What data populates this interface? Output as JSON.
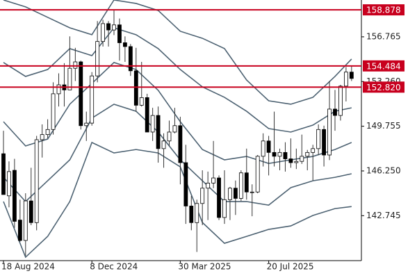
{
  "chart_data": {
    "type": "candlestick",
    "open": [
      147.6,
      144.3,
      146.3,
      142.4,
      140.8,
      143.9,
      142.2,
      148.7,
      149.1,
      149.5,
      152.3,
      153.0,
      152.6,
      154.3,
      154.8,
      149.8,
      150.0,
      153.7,
      156.4,
      157.8,
      157.3,
      157.7,
      156.3,
      156.0,
      154.1,
      151.4,
      152.0,
      149.3,
      150.6,
      148.0,
      148.6,
      149.3,
      149.8,
      146.9,
      143.5,
      142.2,
      143.7,
      144.9,
      145.3,
      145.7,
      142.6,
      144.0,
      144.9,
      144.1,
      146.1,
      144.6,
      144.6,
      147.4,
      148.6,
      147.7,
      147.4,
      147.7,
      147.2,
      146.9,
      147.0,
      147.4,
      147.7,
      148.0,
      149.5,
      147.5,
      151.1,
      150.6,
      152.9,
      154.0
    ],
    "high": [
      149.4,
      147.0,
      147.2,
      144.0,
      144.5,
      146.5,
      149.0,
      149.9,
      150.3,
      153.2,
      153.9,
      154.7,
      156.8,
      155.9,
      154.9,
      150.9,
      154.0,
      158.0,
      158.1,
      158.0,
      158.9,
      158.2,
      156.8,
      156.2,
      155.9,
      154.8,
      152.3,
      151.2,
      151.3,
      149.2,
      150.2,
      151.2,
      150.5,
      148.3,
      144.3,
      144.0,
      146.3,
      146.2,
      148.6,
      145.9,
      146.3,
      145.0,
      145.5,
      146.3,
      148.0,
      145.2,
      147.5,
      149.2,
      149.0,
      150.9,
      148.0,
      148.5,
      148.8,
      148.0,
      149.1,
      147.9,
      148.3,
      149.9,
      149.8,
      153.3,
      152.6,
      153.0,
      154.4,
      154.5
    ],
    "low": [
      144.4,
      143.4,
      141.8,
      140.7,
      139.6,
      142.0,
      141.6,
      147.3,
      148.8,
      149.1,
      151.3,
      151.3,
      152.6,
      153.3,
      149.5,
      148.6,
      149.8,
      153.2,
      156.0,
      156.0,
      156.9,
      154.9,
      154.8,
      153.7,
      150.9,
      151.3,
      149.3,
      148.6,
      146.9,
      146.5,
      148.2,
      149.2,
      145.2,
      142.1,
      141.6,
      139.9,
      142.0,
      142.4,
      144.9,
      142.4,
      142.1,
      142.4,
      142.8,
      143.9,
      144.0,
      142.7,
      144.5,
      146.6,
      145.9,
      146.6,
      146.3,
      146.2,
      146.5,
      146.4,
      146.8,
      146.3,
      145.5,
      147.5,
      146.6,
      147.1,
      149.4,
      150.2,
      151.7,
      153.3
    ],
    "close": [
      144.4,
      146.2,
      142.3,
      140.8,
      143.9,
      142.2,
      148.7,
      149.1,
      149.5,
      152.3,
      153.0,
      152.6,
      154.3,
      154.8,
      149.8,
      150.0,
      153.7,
      156.4,
      157.8,
      157.3,
      157.7,
      156.3,
      156.0,
      154.1,
      151.4,
      152.0,
      149.3,
      150.6,
      148.0,
      148.6,
      149.3,
      149.8,
      146.9,
      143.5,
      142.2,
      143.7,
      144.9,
      145.3,
      145.7,
      142.6,
      144.0,
      144.9,
      144.1,
      146.1,
      144.6,
      144.6,
      147.4,
      148.6,
      147.7,
      147.4,
      147.7,
      147.2,
      146.9,
      147.0,
      147.4,
      147.7,
      148.0,
      149.5,
      147.5,
      151.1,
      150.6,
      152.9,
      154.0,
      153.5
    ],
    "band_x": [
      0,
      4,
      8,
      12,
      16,
      20,
      24,
      28,
      32,
      36,
      40,
      44,
      48,
      52,
      56,
      60,
      63
    ],
    "bands": [
      {
        "color": "#4d6272",
        "values": [
          159.65,
          159.11,
          158.29,
          157.47,
          156.93,
          159.65,
          159.38,
          158.83,
          157.2,
          156.65,
          155.84,
          153.38,
          151.75,
          151.48,
          152.02,
          153.66,
          155.02
        ]
      },
      {
        "color": "#4d6272",
        "values": [
          154.75,
          153.66,
          154.2,
          155.84,
          155.29,
          157.47,
          156.93,
          155.84,
          154.2,
          152.84,
          152.02,
          150.93,
          149.57,
          149.3,
          149.84,
          150.93,
          151.2
        ]
      },
      {
        "color": "#4d6272",
        "values": [
          150.11,
          148.21,
          148.75,
          151.48,
          153.11,
          154.75,
          154.2,
          152.57,
          150.11,
          147.93,
          147.12,
          147.39,
          146.84,
          147.12,
          147.39,
          147.93,
          148.48
        ]
      },
      {
        "color": "#4d6272",
        "values": [
          145.75,
          143.85,
          145.48,
          147.12,
          150.39,
          151.48,
          150.93,
          149.3,
          147.12,
          145.48,
          143.85,
          143.85,
          143.57,
          144.94,
          145.48,
          145.75,
          146.03
        ]
      },
      {
        "color": "#4d6272",
        "values": [
          143.85,
          139.49,
          141.12,
          143.85,
          148.48,
          147.66,
          147.93,
          147.66,
          146.57,
          142.21,
          140.58,
          141.12,
          141.67,
          141.94,
          142.76,
          143.3,
          143.46
        ]
      }
    ],
    "levels": [
      158.878,
      154.484,
      {
        "value": 152.82,
        "label": "152.820"
      }
    ],
    "level_color": "#c8001e",
    "ylim": [
      139.22,
      159.65
    ],
    "yticks": [
      142.745,
      {
        "value": 146.25,
        "label": "146.250"
      },
      149.755,
      {
        "value": 153.26,
        "label": "153.260"
      },
      156.765
    ],
    "xticks": [
      {
        "value": 0,
        "label": "18 Aug 2024"
      },
      {
        "value": 16,
        "label": "8 Dec 2024"
      },
      {
        "value": 32,
        "label": "30 Mar 2025"
      },
      {
        "value": 48,
        "label": "20 Jul 2025"
      }
    ]
  }
}
